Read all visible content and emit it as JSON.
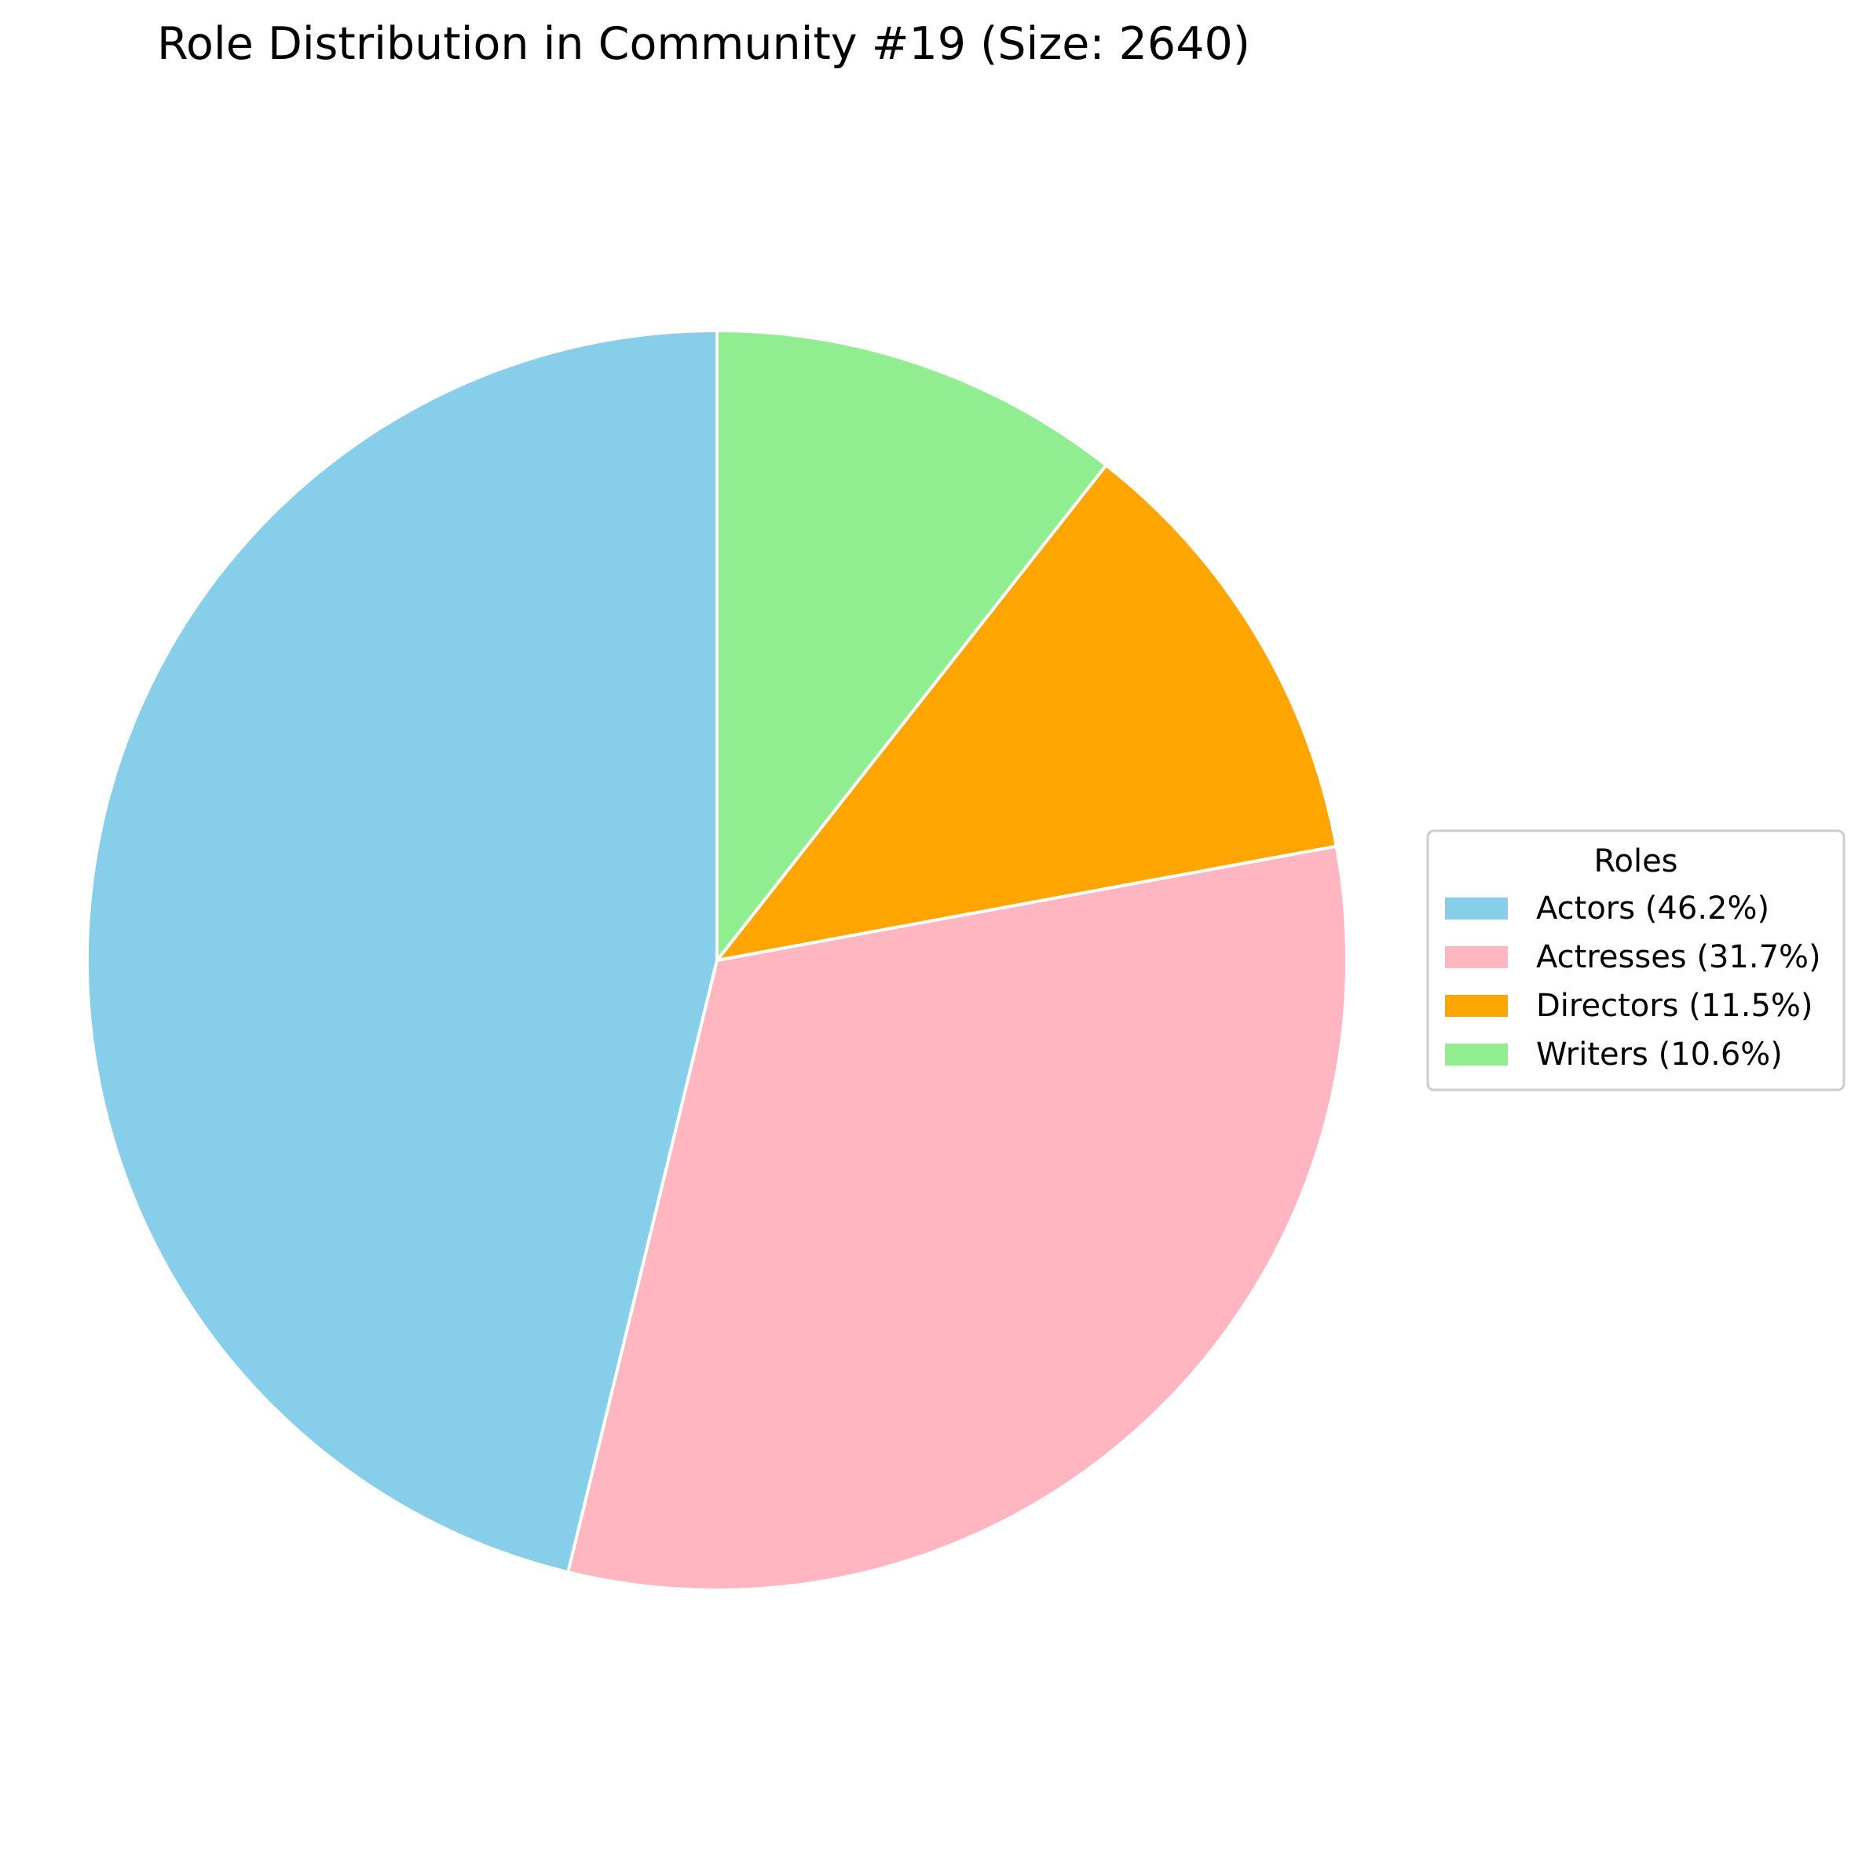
{
  "chart_data": {
    "type": "pie",
    "title": "Role Distribution in Community #19 (Size: 2640)",
    "legend_title": "Roles",
    "legend_placement": "center-right",
    "start_angle_deg": 90,
    "direction": "counterclockwise",
    "edge_color": "#ffffff",
    "slices": [
      {
        "label": "Actors (46.2%)",
        "name": "Actors",
        "percent": 46.2,
        "color": "#87CEEB"
      },
      {
        "label": "Actresses (31.7%)",
        "name": "Actresses",
        "percent": 31.7,
        "color": "#FFB6C1"
      },
      {
        "label": "Directors (11.5%)",
        "name": "Directors",
        "percent": 11.5,
        "color": "#FFA500"
      },
      {
        "label": "Writers (10.6%)",
        "name": "Writers",
        "percent": 10.6,
        "color": "#90EE90"
      }
    ]
  }
}
